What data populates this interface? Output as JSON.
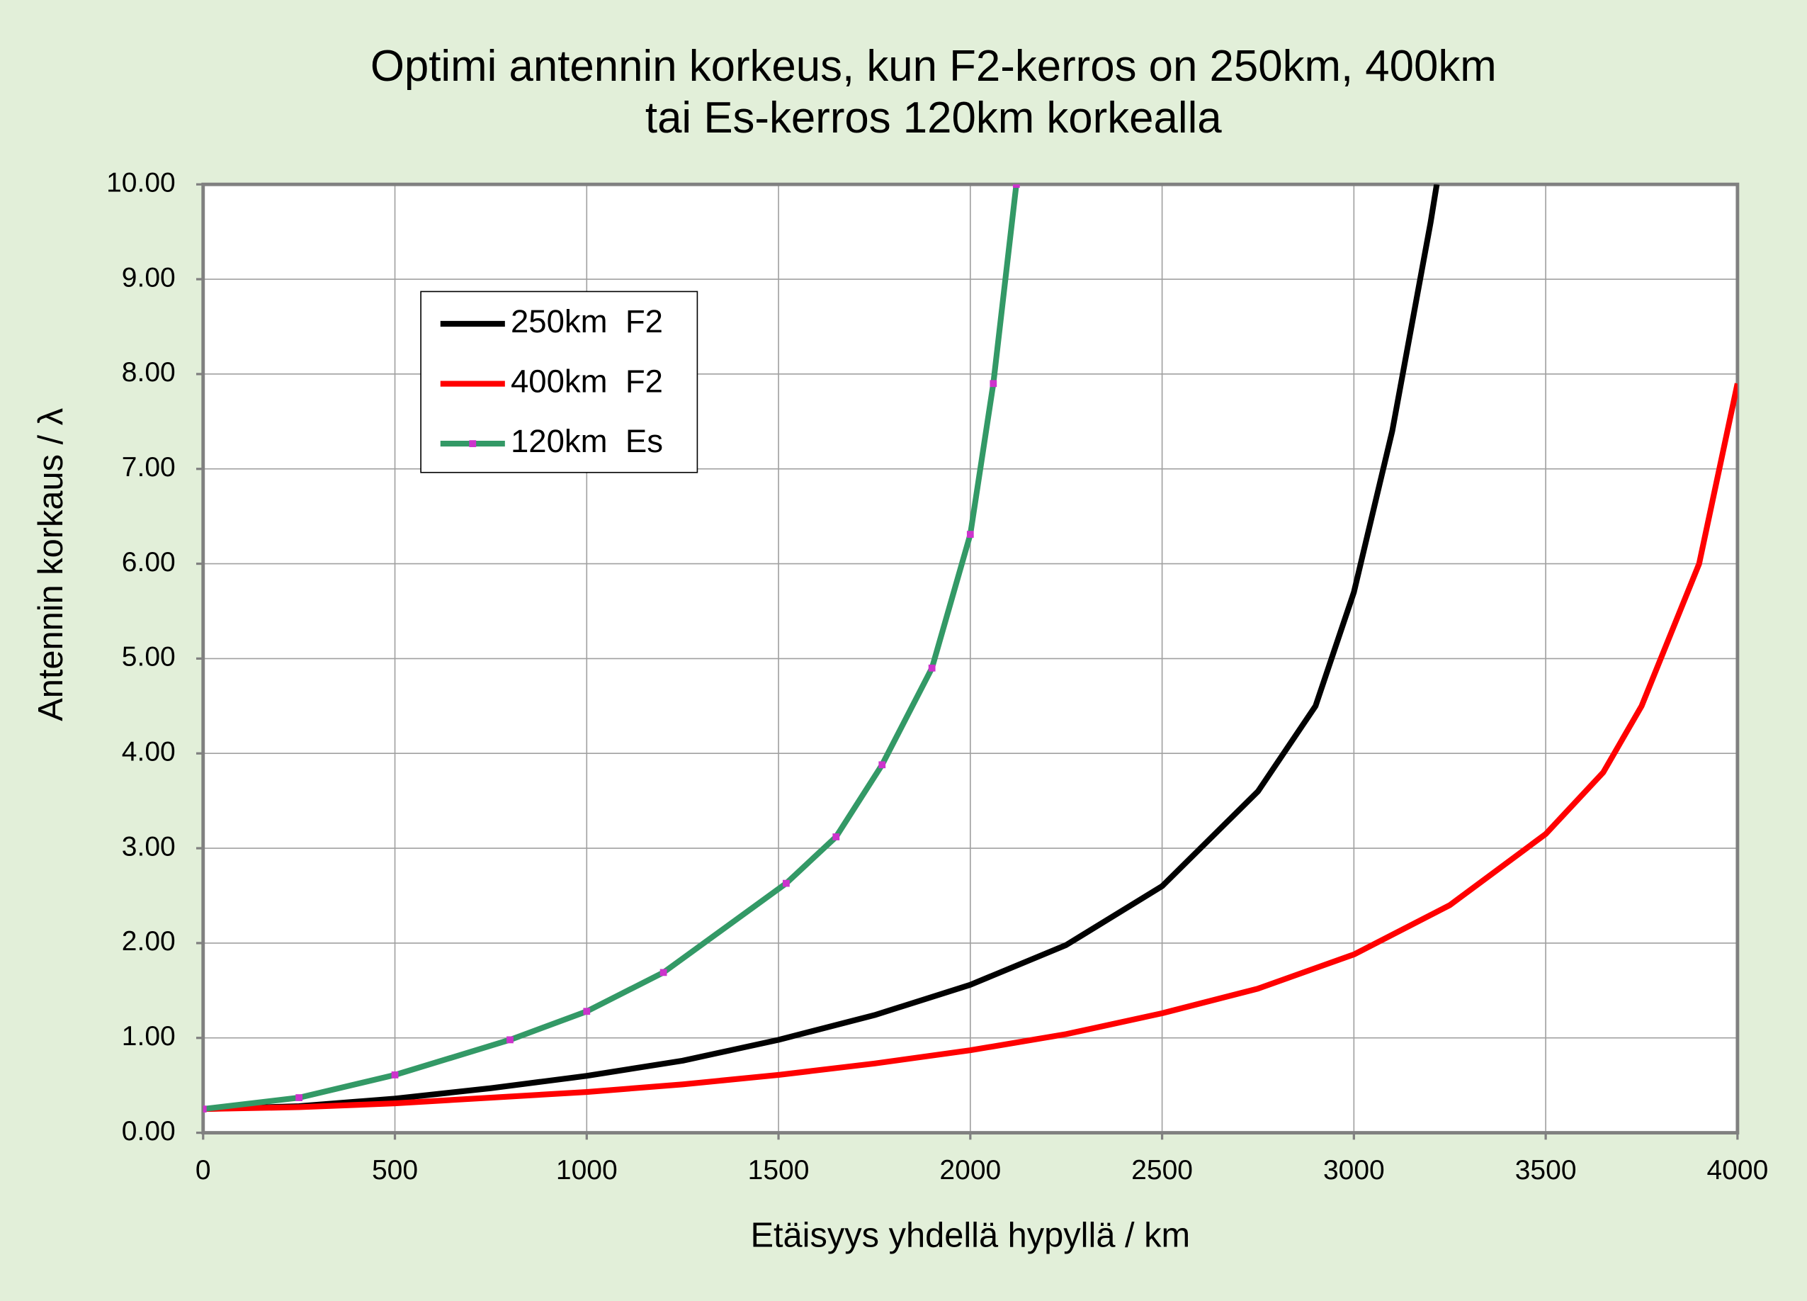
{
  "chart_data": {
    "type": "line",
    "title": [
      "Optimi antennin korkeus, kun F2-kerros on 250km, 400km",
      "tai Es-kerros 120km korkealla"
    ],
    "x_label": "Etäisyys yhdellä hypyllä / km",
    "y_label": "Antennin korkaus / λ",
    "xlim": [
      0,
      4000
    ],
    "ylim": [
      0,
      10
    ],
    "xticks": [
      0,
      500,
      1000,
      1500,
      2000,
      2500,
      3000,
      3500,
      4000
    ],
    "yticks": [
      {
        "value": 0,
        "label": "0.00"
      },
      {
        "value": 1,
        "label": "1.00"
      },
      {
        "value": 2,
        "label": "2.00"
      },
      {
        "value": 3,
        "label": "3.00"
      },
      {
        "value": 4,
        "label": "4.00"
      },
      {
        "value": 5,
        "label": "5.00"
      },
      {
        "value": 6,
        "label": "6.00"
      },
      {
        "value": 7,
        "label": "7.00"
      },
      {
        "value": 8,
        "label": "8.00"
      },
      {
        "value": 9,
        "label": "9.00"
      },
      {
        "value": 10,
        "label": "10.00"
      }
    ],
    "grid": true,
    "legend": "upper-left",
    "series": [
      {
        "name": "250km  F2",
        "color": "#000000",
        "x": [
          0,
          250,
          500,
          750,
          1000,
          1250,
          1500,
          1750,
          2000,
          2250,
          2500,
          2750,
          2900,
          3000,
          3100,
          3200,
          3216
        ],
        "values": [
          0.25,
          0.28,
          0.36,
          0.47,
          0.6,
          0.76,
          0.98,
          1.24,
          1.56,
          1.98,
          2.6,
          3.6,
          4.5,
          5.7,
          7.4,
          9.6,
          10
        ]
      },
      {
        "name": "400km  F2",
        "color": "#ff0000",
        "x": [
          0,
          250,
          500,
          750,
          1000,
          1250,
          1500,
          1750,
          2000,
          2250,
          2500,
          2750,
          3000,
          3250,
          3500,
          3650,
          3750,
          3900,
          4000
        ],
        "values": [
          0.25,
          0.27,
          0.31,
          0.37,
          0.43,
          0.51,
          0.61,
          0.73,
          0.87,
          1.04,
          1.26,
          1.52,
          1.88,
          2.4,
          3.15,
          3.8,
          4.5,
          6.0,
          7.9
        ]
      },
      {
        "name": "120km  Es",
        "color": "#339966",
        "marker_color": "#cc33cc",
        "x": [
          0,
          250,
          500,
          800,
          1000,
          1200,
          1520,
          1650,
          1770,
          1900,
          2000,
          2060,
          2120
        ],
        "values": [
          0.25,
          0.37,
          0.61,
          0.98,
          1.28,
          1.69,
          2.63,
          3.12,
          3.88,
          4.9,
          6.31,
          7.9,
          10
        ]
      }
    ]
  }
}
